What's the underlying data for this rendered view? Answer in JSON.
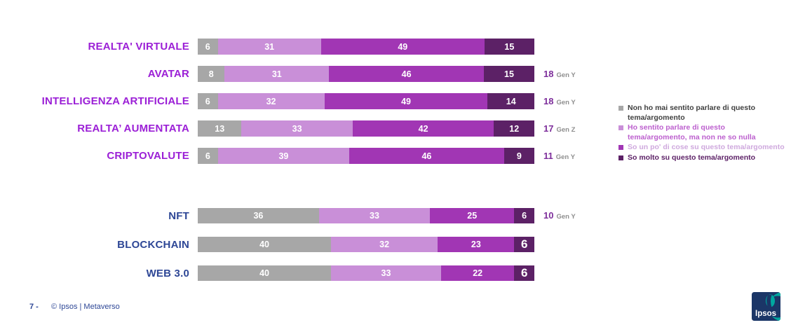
{
  "chart_data": {
    "type": "bar",
    "orientation": "horizontal",
    "stacked": true,
    "unit": "%",
    "grid": false,
    "legend_position": "right",
    "series": [
      {
        "name": "Non ho mai sentito parlare di questo tema/argomento",
        "color": "#A7A7A7"
      },
      {
        "name": "Ho sentito parlare di questo tema/argomento, ma non ne so nulla",
        "color": "#C98FD8"
      },
      {
        "name": "So un po' di cose su questo tema/argomento",
        "color": "#A136B4"
      },
      {
        "name": "So molto su questo tema/argomento",
        "color": "#5C2166"
      }
    ],
    "category_label_colors": {
      "group1": "#9B1FD6",
      "group2": "#2E4796"
    },
    "groups": [
      {
        "rows": [
          {
            "category": "REALTA' VIRTUALE",
            "values": [
              6,
              31,
              49,
              15
            ],
            "annotation": null
          },
          {
            "category": "AVATAR",
            "values": [
              8,
              31,
              46,
              15
            ],
            "annotation": {
              "value": "18",
              "cohort": "Gen Y"
            }
          },
          {
            "category": "INTELLIGENZA ARTIFICIALE",
            "values": [
              6,
              32,
              49,
              14
            ],
            "annotation": {
              "value": "18",
              "cohort": "Gen Y"
            }
          },
          {
            "category": "REALTA’ AUMENTATA",
            "values": [
              13,
              33,
              42,
              12
            ],
            "annotation": {
              "value": "17",
              "cohort": "Gen Z"
            }
          },
          {
            "category": "CRIPTOVALUTE",
            "values": [
              6,
              39,
              46,
              9
            ],
            "annotation": {
              "value": "11",
              "cohort": "Gen Y"
            }
          }
        ]
      },
      {
        "rows": [
          {
            "category": "NFT",
            "values": [
              36,
              33,
              25,
              6
            ],
            "annotation": {
              "value": "10",
              "cohort": "Gen Y"
            }
          },
          {
            "category": "BLOCKCHAIN",
            "values": [
              40,
              32,
              23,
              6
            ],
            "annotation": null,
            "last_value_large": true
          },
          {
            "category": "WEB 3.0",
            "values": [
              40,
              33,
              22,
              6
            ],
            "annotation": null,
            "last_value_large": true
          }
        ]
      }
    ]
  },
  "legend": {
    "items": [
      {
        "label": "Non ho mai sentito parlare di questo tema/argomento",
        "swatch": "#A7A7A7",
        "text_color": "#404040"
      },
      {
        "label": "Ho sentito parlare di questo tema/argomento, ma non ne so nulla",
        "swatch": "#C98FD8",
        "text_color": "#BC5FCE"
      },
      {
        "label": "So un po' di cose su questo tema/argomento",
        "swatch": "#A136B4",
        "text_color": "#CFA9DE"
      },
      {
        "label": "So molto su questo tema/argomento",
        "swatch": "#5C2166",
        "text_color": "#5C2166"
      }
    ]
  },
  "footer": {
    "page_number": "7 -",
    "copyright": "© Ipsos | Metaverso",
    "logo_text": "Ipsos"
  },
  "colors": {
    "logo_navy": "#1B3667",
    "logo_teal": "#00A8A0",
    "annotation_number": "#7D2E9B",
    "annotation_cohort": "#8F8F8F"
  }
}
